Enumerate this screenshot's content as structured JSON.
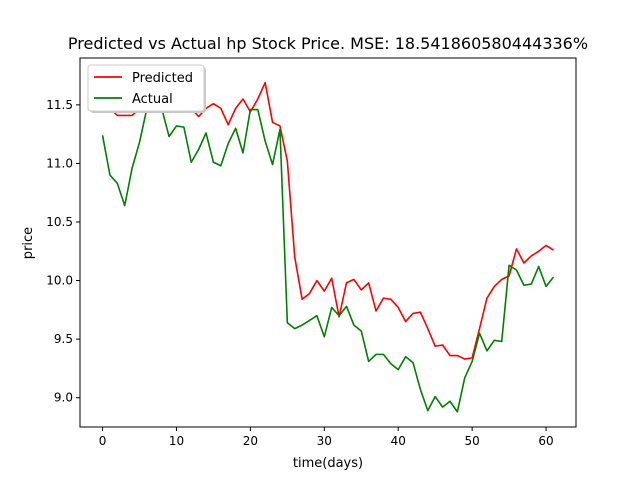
{
  "chart_data": {
    "type": "line",
    "title": "Predicted vs Actual hp Stock Price. MSE: 18.541860580444336%",
    "xlabel": "time(days)",
    "ylabel": "price",
    "xlim": [
      -3.05,
      64.05
    ],
    "ylim": [
      8.75,
      11.9
    ],
    "xticks": [
      "0",
      "10",
      "20",
      "30",
      "40",
      "50",
      "60"
    ],
    "yticks": [
      "9.0",
      "9.5",
      "10.0",
      "10.5",
      "11.0",
      "11.5"
    ],
    "legend_placement": "upper-left",
    "grid": false,
    "x": [
      0,
      1,
      2,
      3,
      4,
      5,
      6,
      7,
      8,
      9,
      10,
      11,
      12,
      13,
      14,
      15,
      16,
      17,
      18,
      19,
      20,
      21,
      22,
      23,
      24,
      25,
      26,
      27,
      28,
      29,
      30,
      31,
      32,
      33,
      34,
      35,
      36,
      37,
      38,
      39,
      40,
      41,
      42,
      43,
      44,
      45,
      46,
      47,
      48,
      49,
      50,
      51,
      52,
      53,
      54,
      55,
      56,
      57,
      58,
      59,
      60,
      61
    ],
    "series": [
      {
        "name": "Predicted",
        "color": "#ff0000",
        "values": [
          11.47,
          11.47,
          11.41,
          11.41,
          11.41,
          11.47,
          11.47,
          11.47,
          11.47,
          11.47,
          11.47,
          11.47,
          11.47,
          11.4,
          11.47,
          11.51,
          11.47,
          11.33,
          11.47,
          11.55,
          11.44,
          11.55,
          11.69,
          11.35,
          11.32,
          11.02,
          10.2,
          9.84,
          9.89,
          10.0,
          9.91,
          10.02,
          9.69,
          9.98,
          10.01,
          9.92,
          9.98,
          9.74,
          9.85,
          9.84,
          9.77,
          9.65,
          9.72,
          9.73,
          9.59,
          9.44,
          9.45,
          9.36,
          9.36,
          9.33,
          9.34,
          9.59,
          9.85,
          9.95,
          10.01,
          10.04,
          10.27,
          10.15,
          10.21,
          10.25,
          10.3,
          10.26
        ]
      },
      {
        "name": "Actual",
        "color": "#008000",
        "values": [
          11.24,
          10.9,
          10.83,
          10.64,
          10.96,
          11.18,
          11.47,
          11.47,
          11.47,
          11.23,
          11.32,
          11.31,
          11.01,
          11.12,
          11.26,
          11.01,
          10.98,
          11.17,
          11.3,
          11.09,
          11.46,
          11.46,
          11.19,
          10.99,
          11.29,
          9.64,
          9.59,
          9.62,
          9.66,
          9.7,
          9.52,
          9.77,
          9.7,
          9.78,
          9.62,
          9.57,
          9.31,
          9.37,
          9.37,
          9.29,
          9.24,
          9.35,
          9.3,
          9.07,
          8.89,
          9.01,
          8.92,
          8.97,
          8.88,
          9.17,
          9.31,
          9.55,
          9.4,
          9.49,
          9.48,
          10.13,
          10.09,
          9.96,
          9.97,
          10.12,
          9.95,
          10.03
        ]
      }
    ]
  }
}
